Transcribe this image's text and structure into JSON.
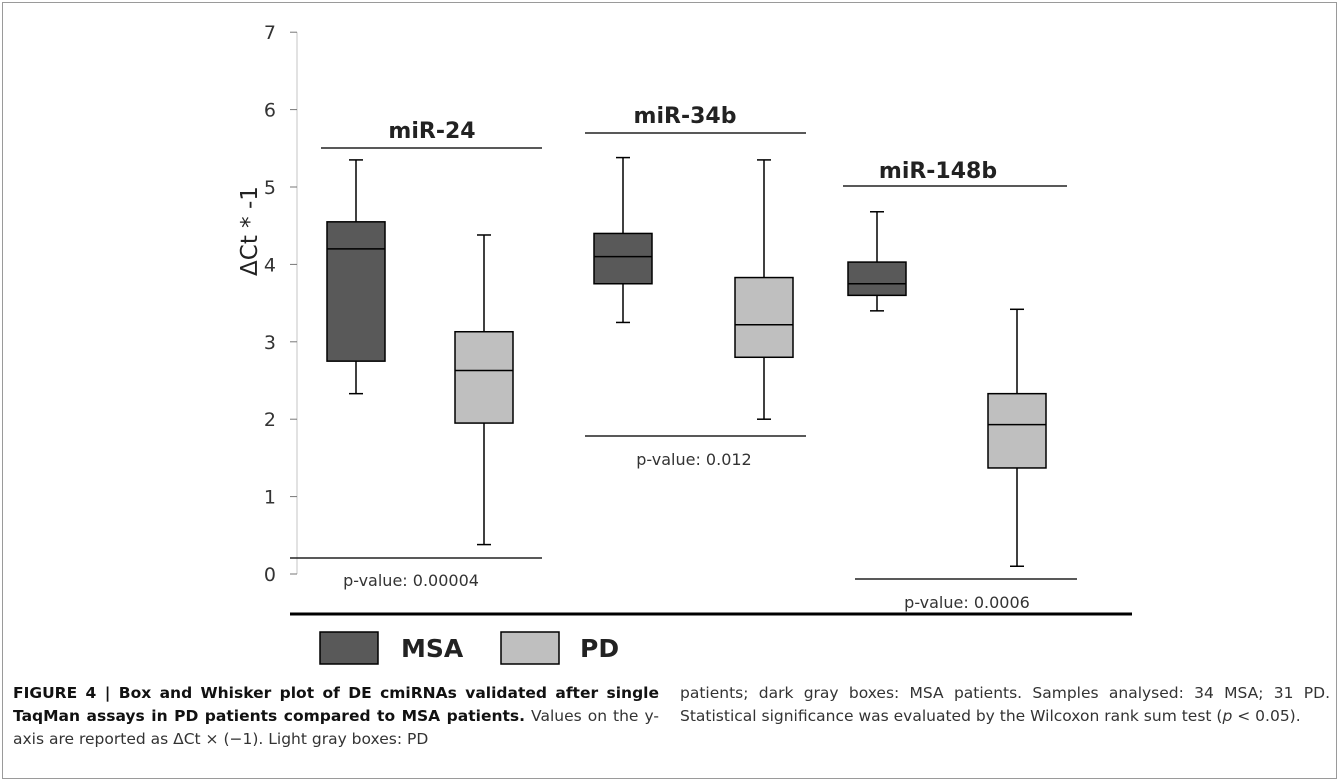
{
  "chart_data": {
    "type": "box",
    "ylabel": "ΔCt * -1",
    "ylim": [
      0,
      7
    ],
    "yticks": [
      0,
      1,
      2,
      3,
      4,
      5,
      6,
      7
    ],
    "groups": [
      {
        "name": "miR-24",
        "pvalue": "p-value: 0.00004",
        "boxes": [
          {
            "series": "MSA",
            "min": 2.33,
            "q1": 2.75,
            "median": 4.2,
            "q3": 4.55,
            "max": 5.35
          },
          {
            "series": "PD",
            "min": 0.38,
            "q1": 1.95,
            "median": 2.63,
            "q3": 3.13,
            "max": 4.38
          }
        ]
      },
      {
        "name": "miR-34b",
        "pvalue": "p-value: 0.012",
        "boxes": [
          {
            "series": "MSA",
            "min": 3.25,
            "q1": 3.75,
            "median": 4.1,
            "q3": 4.4,
            "max": 5.38
          },
          {
            "series": "PD",
            "min": 2.0,
            "q1": 2.8,
            "median": 3.22,
            "q3": 3.83,
            "max": 5.35
          }
        ]
      },
      {
        "name": "miR-148b",
        "pvalue": "p-value: 0.0006",
        "boxes": [
          {
            "series": "MSA",
            "min": 3.4,
            "q1": 3.6,
            "median": 3.75,
            "q3": 4.03,
            "max": 4.68
          },
          {
            "series": "PD",
            "min": 0.1,
            "q1": 1.37,
            "median": 1.93,
            "q3": 2.33,
            "max": 3.42
          }
        ]
      }
    ],
    "legend": [
      {
        "name": "MSA",
        "color": "#595959"
      },
      {
        "name": "PD",
        "color": "#bfbfbf"
      }
    ]
  },
  "caption": {
    "label": "FIGURE 4 | Box and Whisker plot of DE cmiRNAs validated after single TaqMan assays in PD patients compared to MSA patients.",
    "text_1": "Values on the y-axis are reported as ΔCt × (−1). Light gray boxes: PD",
    "text_2": "patients; dark gray boxes: MSA patients. Samples analysed: 34 MSA; 31 PD. Statistical significance was evaluated by the Wilcoxon rank sum test (",
    "p_symbol": "p",
    "text_3": " < 0.05)."
  }
}
